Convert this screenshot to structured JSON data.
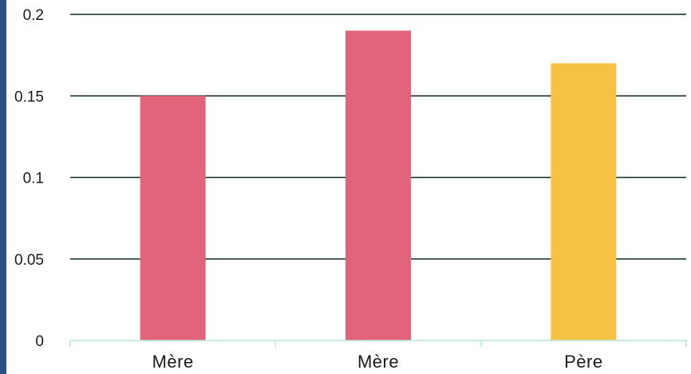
{
  "chart_data": {
    "type": "bar",
    "categories": [
      "Mère",
      "Mère",
      "Père"
    ],
    "values": [
      0.15,
      0.19,
      0.17
    ],
    "bar_colors": [
      "#E2647A",
      "#E2647A",
      "#F6C244"
    ],
    "ylim": [
      0,
      0.2
    ],
    "yticks": [
      0,
      0.05,
      0.1,
      0.15,
      0.2
    ],
    "ytick_labels": [
      "0",
      "0.05",
      "0.1",
      "0.15",
      "0.2"
    ],
    "grid": true,
    "xlabel": "",
    "ylabel": ""
  },
  "colors": {
    "gridline": "#0f2a22",
    "x_axis": "#b9e6dc",
    "left_accent": "#2B5285"
  }
}
